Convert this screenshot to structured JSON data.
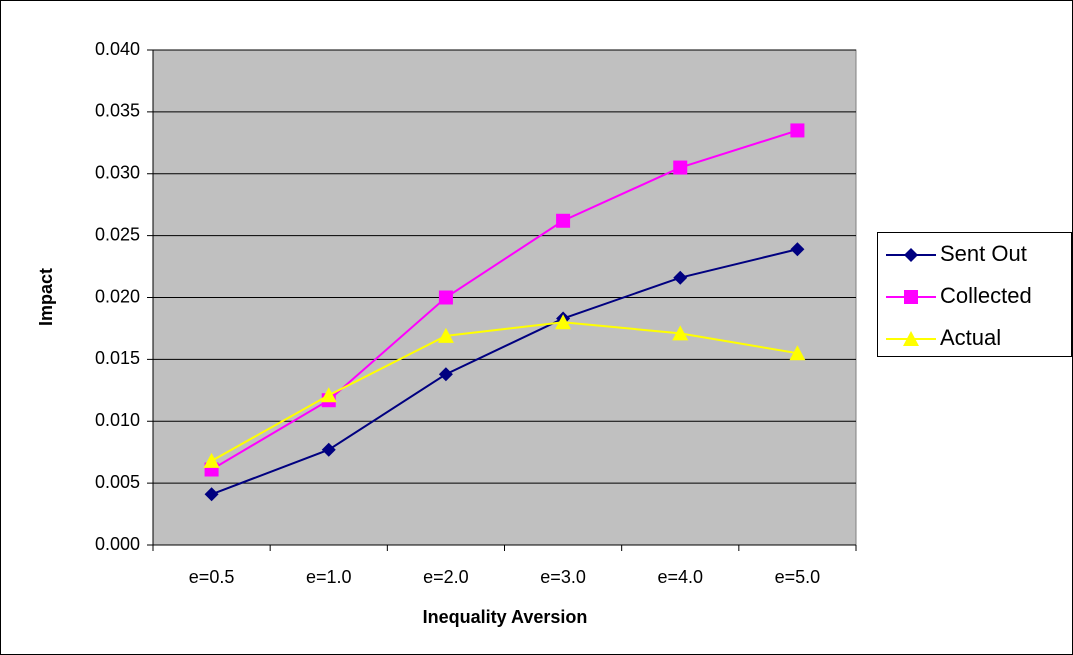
{
  "chart_data": {
    "type": "line",
    "x_label": "Inequality Aversion",
    "y_label": "Impact",
    "categories": [
      "e=0.5",
      "e=1.0",
      "e=2.0",
      "e=3.0",
      "e=4.0",
      "e=5.0"
    ],
    "series": [
      {
        "name": "Sent Out",
        "color": "#000080",
        "marker": "diamond",
        "values": [
          0.0041,
          0.0077,
          0.0138,
          0.0183,
          0.0216,
          0.0239
        ]
      },
      {
        "name": "Collected",
        "color": "#ff00ff",
        "marker": "square",
        "values": [
          0.0061,
          0.0117,
          0.02,
          0.0262,
          0.0305,
          0.0335
        ]
      },
      {
        "name": "Actual",
        "color": "#ffff00",
        "marker": "triangle",
        "values": [
          0.0068,
          0.0121,
          0.0169,
          0.018,
          0.0171,
          0.0155
        ]
      }
    ],
    "ylim": [
      0,
      0.04
    ],
    "yticks": [
      {
        "value": 0,
        "label": "0.000"
      },
      {
        "value": 0.005,
        "label": "0.005"
      },
      {
        "value": 0.01,
        "label": "0.010"
      },
      {
        "value": 0.015,
        "label": "0.015"
      },
      {
        "value": 0.02,
        "label": "0.020"
      },
      {
        "value": 0.025,
        "label": "0.025"
      },
      {
        "value": 0.03,
        "label": "0.030"
      },
      {
        "value": 0.035,
        "label": "0.035"
      },
      {
        "value": 0.04,
        "label": "0.040"
      }
    ],
    "grid": true,
    "plot_background": "#c0c0c0",
    "legend": "right"
  }
}
